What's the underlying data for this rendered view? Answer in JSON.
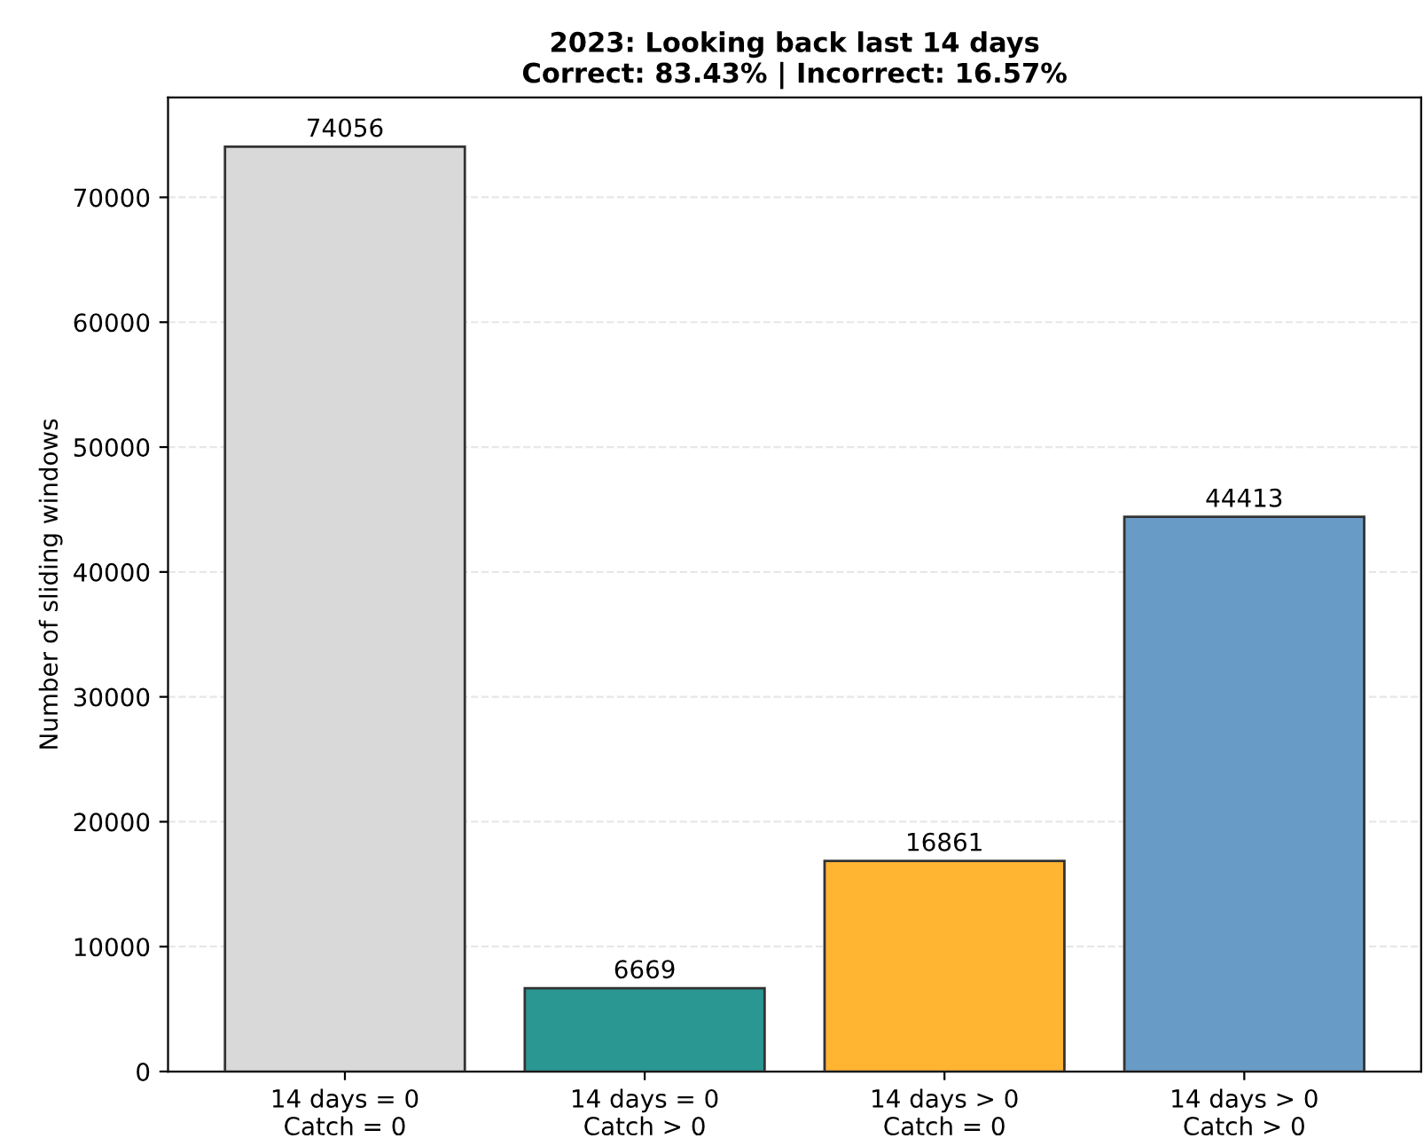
{
  "chart_data": {
    "type": "bar",
    "title": "2023: Looking back last 14 days\nCorrect: 83.43% | Incorrect: 16.57%",
    "ylabel": "Number of sliding windows",
    "categories": [
      "14 days = 0\nCatch = 0",
      "14 days = 0\nCatch > 0",
      "14 days > 0\nCatch = 0",
      "14 days > 0\nCatch > 0"
    ],
    "values": [
      74056,
      6669,
      16861,
      44413
    ],
    "colors": [
      "#d9d9d9",
      "#2a9793",
      "#ffb432",
      "#699bc7"
    ],
    "ylim": [
      0,
      78000
    ],
    "yticks": [
      0,
      10000,
      20000,
      30000,
      40000,
      50000,
      60000,
      70000
    ],
    "grid": "y",
    "data_labels": true,
    "legend": false
  }
}
